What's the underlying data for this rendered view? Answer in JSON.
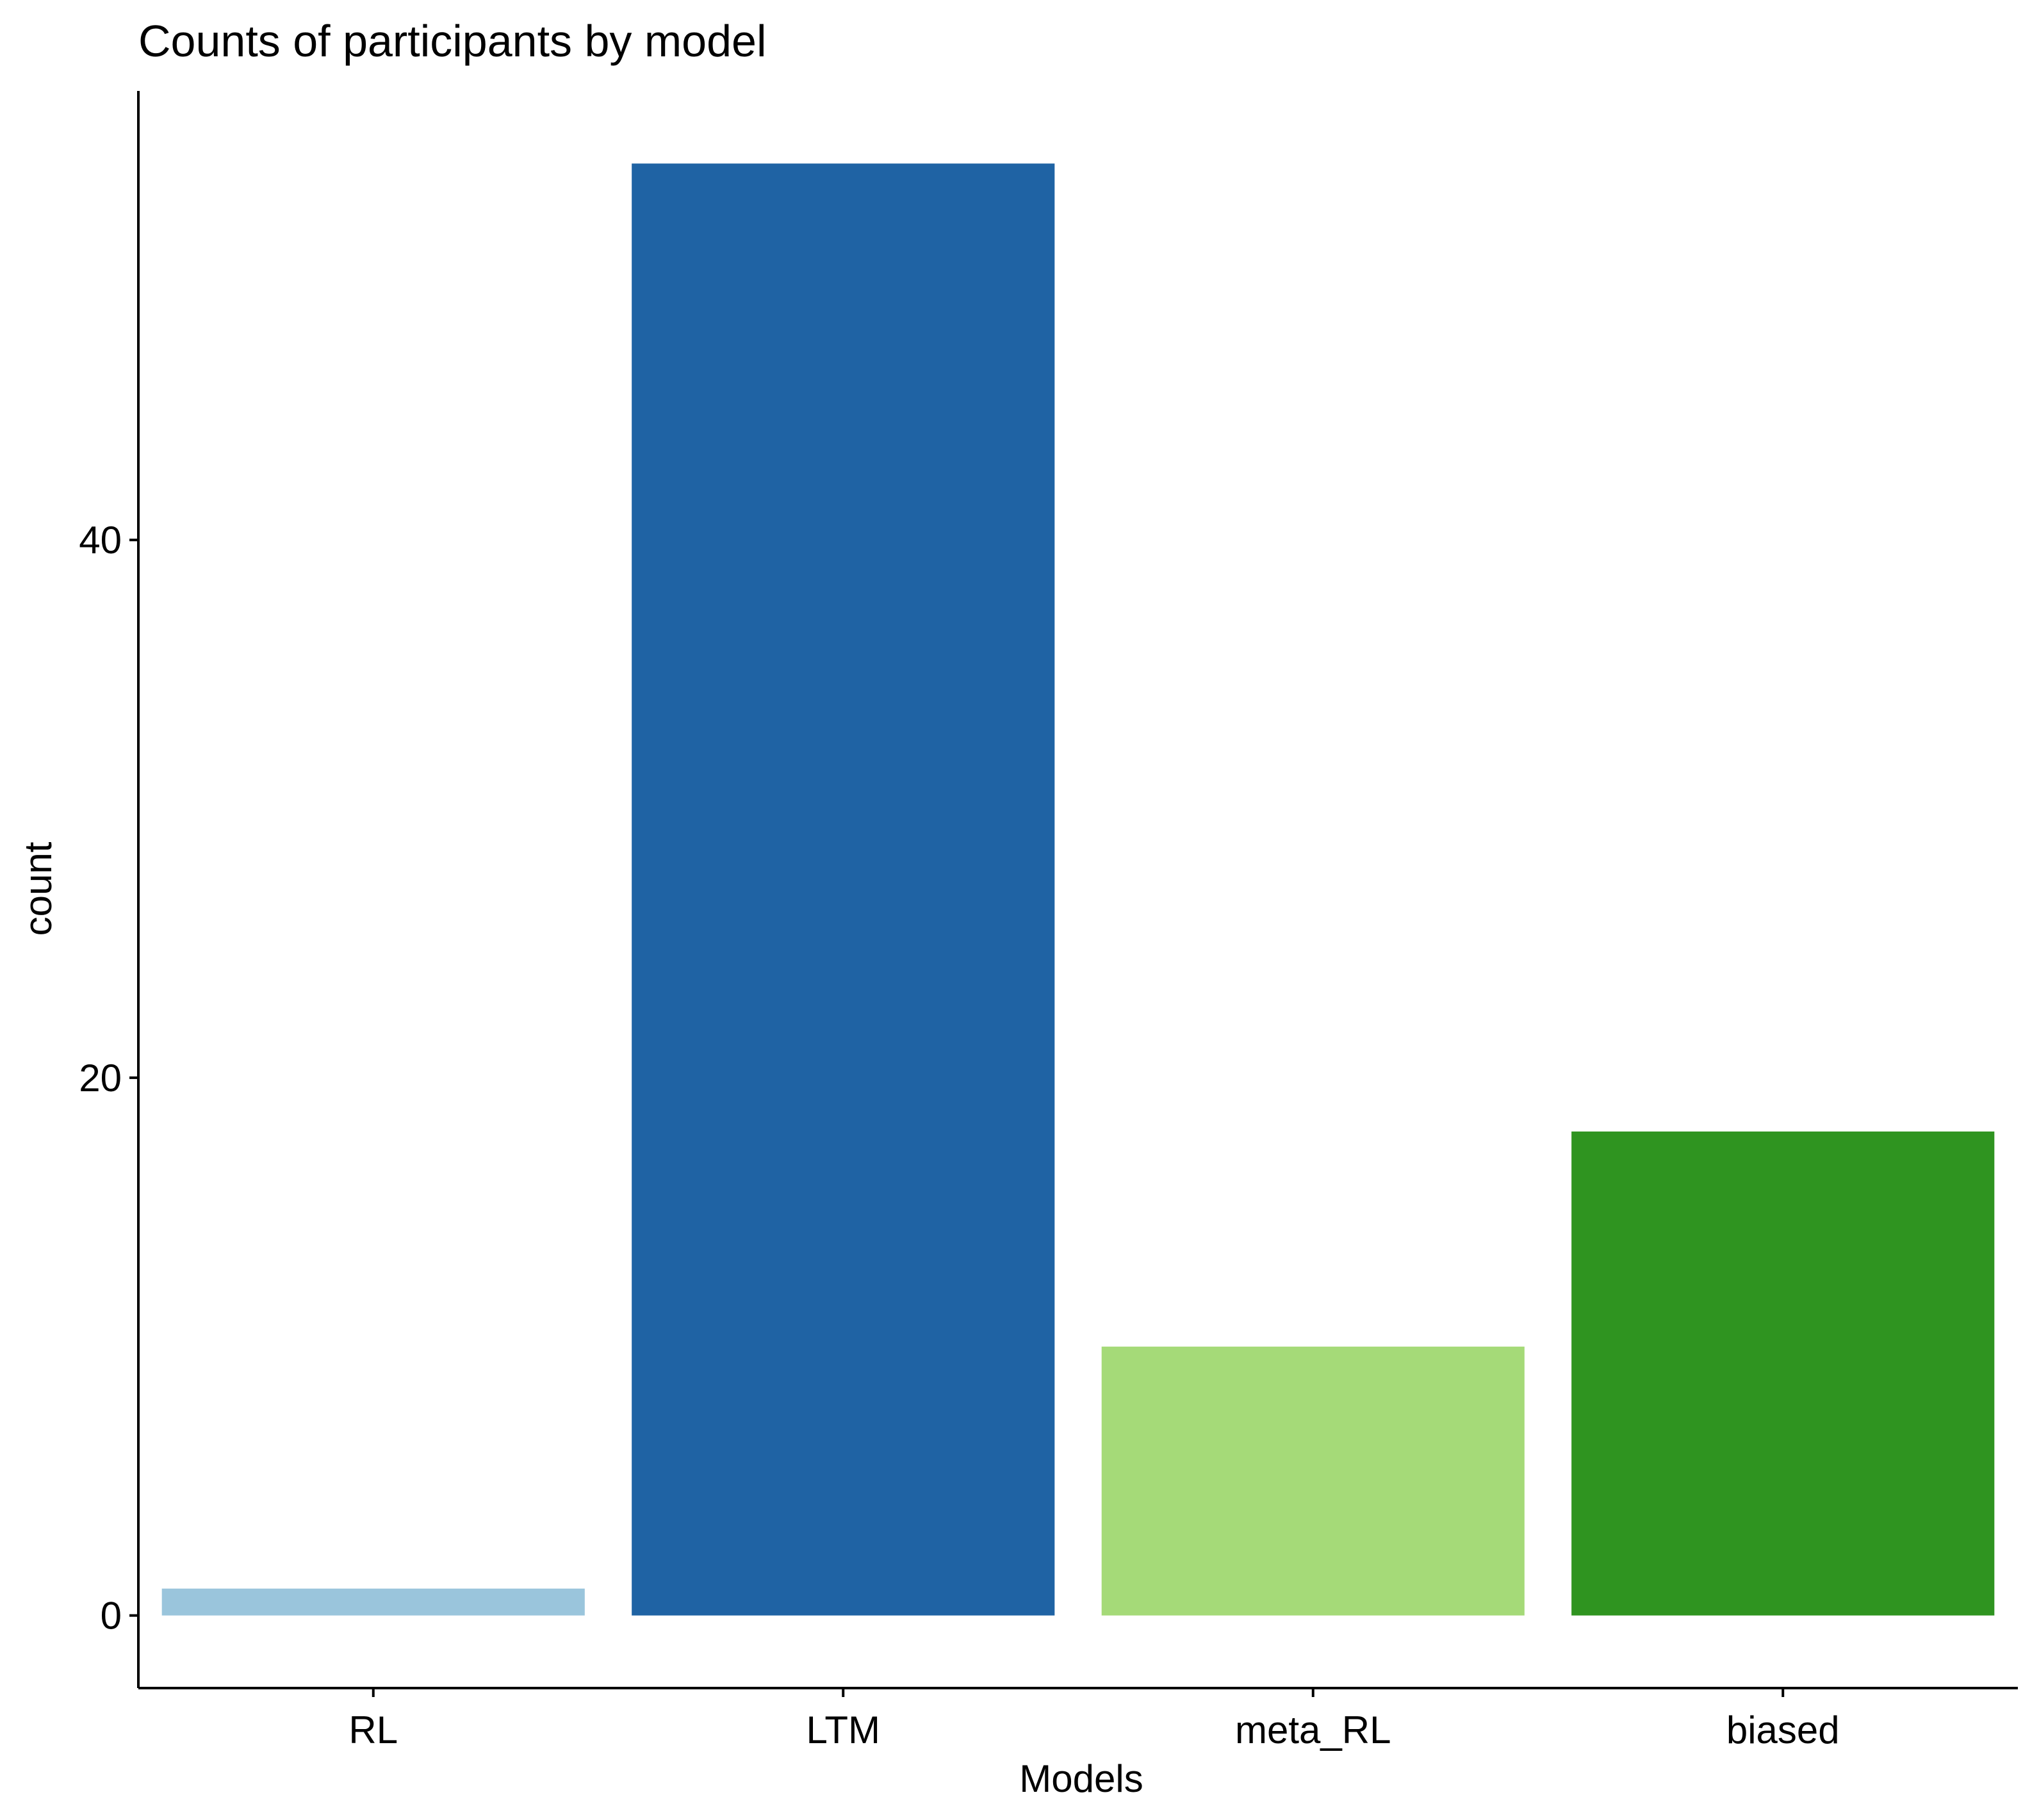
{
  "chart_data": {
    "type": "bar",
    "title": "Counts of participants by model",
    "xlabel": "Models",
    "ylabel": "count",
    "categories": [
      "RL",
      "LTM",
      "meta_RL",
      "biased"
    ],
    "values": [
      1,
      54,
      10,
      18
    ],
    "colors": [
      "#9ac5dc",
      "#1f63a4",
      "#a5da78",
      "#2f9420"
    ],
    "yticks": [
      0,
      20,
      40
    ],
    "ylim": [
      -2.7,
      56.7
    ],
    "grid": false,
    "legend": "none"
  }
}
